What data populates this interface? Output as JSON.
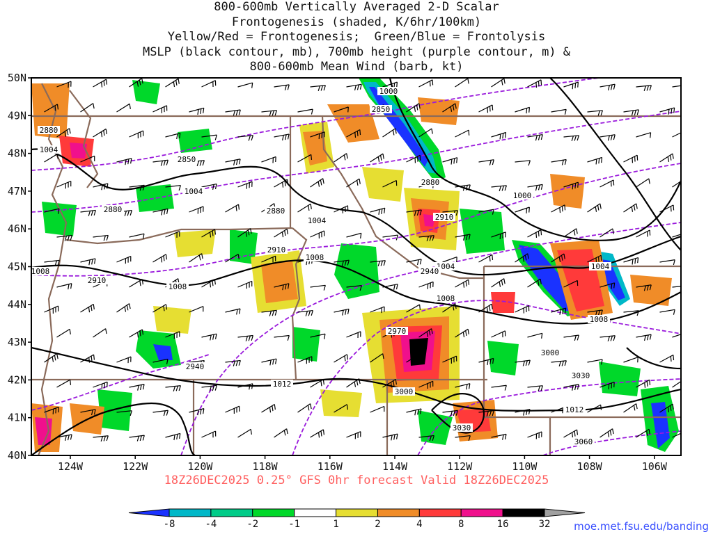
{
  "title_lines": [
    "800-600mb Vertically Averaged 2-D Scalar",
    "Frontogenesis (shaded, K/6hr/100km)",
    "Yellow/Red = Frontogenesis;  Green/Blue = Frontolysis",
    "MSLP (black contour, mb), 700mb height (purple contour, m) &",
    "800-600mb Mean Wind (barb, kt)"
  ],
  "footer": "18Z26DEC2025 0.25° GFS 0hr forecast Valid 18Z26DEC2025",
  "credit": "moe.met.fsu.edu/banding",
  "map": {
    "lat_labels": [
      "50N",
      "49N",
      "48N",
      "47N",
      "46N",
      "45N",
      "44N",
      "43N",
      "42N",
      "41N",
      "40N"
    ],
    "lon_labels": [
      "124W",
      "122W",
      "120W",
      "118W",
      "116W",
      "114W",
      "112W",
      "110W",
      "108W",
      "106W"
    ],
    "mslp_labels": [
      "1000",
      "1000",
      "1004",
      "1004",
      "1004",
      "1004",
      "1004",
      "1008",
      "1008",
      "1008",
      "1008",
      "1008",
      "1012",
      "1012"
    ],
    "height_labels": [
      "2850",
      "2850",
      "2880",
      "2880",
      "2880",
      "2880",
      "2910",
      "2910",
      "2910",
      "2940",
      "2940",
      "2970",
      "3000",
      "3000",
      "3030",
      "3030",
      "3060"
    ]
  },
  "colorbar": {
    "labels": [
      "-8",
      "-4",
      "-2",
      "-1",
      "1",
      "2",
      "4",
      "8",
      "16",
      "32"
    ],
    "colors": [
      "#1a32ff",
      "#00b8c8",
      "#00cc88",
      "#00d82a",
      "#ffffff",
      "#e6de32",
      "#f08c28",
      "#ff3a3a",
      "#f0108c",
      "#000000",
      "#a0a0a0"
    ]
  },
  "colors": {
    "border": "#8a6a5a",
    "mslp": "#000000",
    "height": "#9a1adc"
  }
}
